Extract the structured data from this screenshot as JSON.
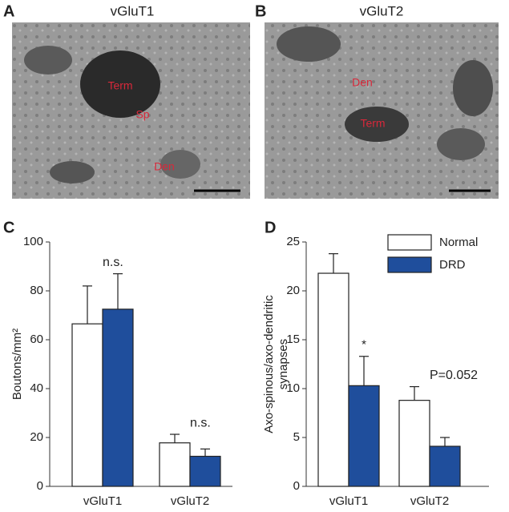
{
  "panels": [
    {
      "letter": "A",
      "title": "vGluT1",
      "labels": [
        "Term",
        "Sp",
        "Den"
      ]
    },
    {
      "letter": "B",
      "title": "vGluT2",
      "labels": [
        "Den",
        "Term"
      ]
    }
  ],
  "chart_data": [
    {
      "type": "bar",
      "letter": "C",
      "y_label": [
        "Boutons/mm²"
      ],
      "categories": [
        "vGluT1",
        "vGluT2"
      ],
      "series": [
        {
          "color": "#ffffff",
          "values": [
            66.5,
            17.8
          ],
          "errors": [
            15.5,
            3.5
          ]
        },
        {
          "color": "#1f4e9c",
          "values": [
            72.5,
            12.3
          ],
          "errors": [
            14.5,
            3
          ]
        }
      ],
      "annotations": [
        "n.s.",
        "n.s."
      ],
      "ylim": [
        0,
        100
      ],
      "yticks": [
        0,
        20,
        40,
        60,
        80,
        100
      ]
    },
    {
      "type": "bar",
      "letter": "D",
      "y_label": [
        "Axo-spinous/axo-dendritic",
        "synapses"
      ],
      "categories": [
        "vGluT1",
        "vGluT2"
      ],
      "series": [
        {
          "name": "Normal",
          "color": "#ffffff",
          "values": [
            21.8,
            8.8
          ],
          "errors": [
            2,
            1.4
          ]
        },
        {
          "name": "DRD",
          "color": "#1f4e9c",
          "values": [
            10.3,
            4.1
          ],
          "errors": [
            3,
            0.9
          ]
        }
      ],
      "annotations": [
        "*",
        "P=0.052"
      ],
      "ylim": [
        0,
        25
      ],
      "yticks": [
        0,
        5,
        10,
        15,
        20,
        25
      ],
      "legend": "upper right"
    }
  ]
}
